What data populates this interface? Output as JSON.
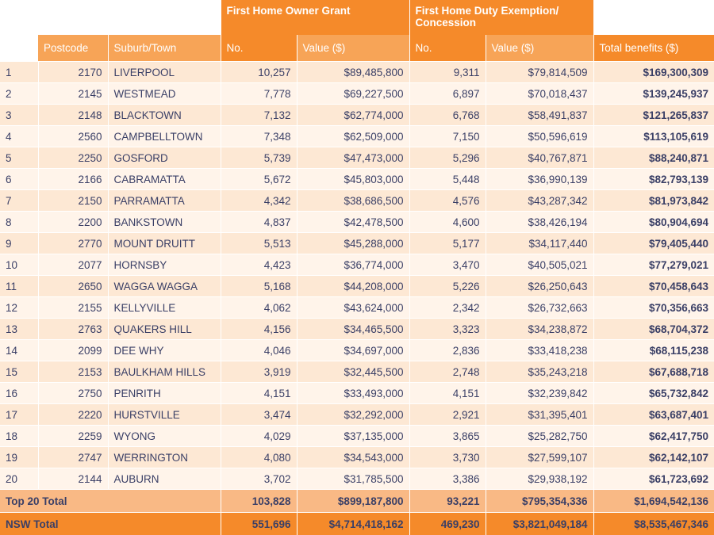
{
  "headers": {
    "group_grant": "First Home Owner Grant",
    "group_duty": "First Home Duty Exemption/ Concession",
    "postcode": "Postcode",
    "suburb": "Suburb/Town",
    "grant_no": "No.",
    "grant_value": "Value ($)",
    "duty_no": "No.",
    "duty_value": "Value ($)",
    "total": "Total benefits ($)"
  },
  "rows": [
    {
      "rank": "1",
      "postcode": "2170",
      "suburb": "LIVERPOOL",
      "grant_no": "10,257",
      "grant_value": "$89,485,800",
      "duty_no": "9,311",
      "duty_value": "$79,814,509",
      "total": "$169,300,309"
    },
    {
      "rank": "2",
      "postcode": "2145",
      "suburb": "WESTMEAD",
      "grant_no": "7,778",
      "grant_value": "$69,227,500",
      "duty_no": "6,897",
      "duty_value": "$70,018,437",
      "total": "$139,245,937"
    },
    {
      "rank": "3",
      "postcode": "2148",
      "suburb": "BLACKTOWN",
      "grant_no": "7,132",
      "grant_value": "$62,774,000",
      "duty_no": "6,768",
      "duty_value": "$58,491,837",
      "total": "$121,265,837"
    },
    {
      "rank": "4",
      "postcode": "2560",
      "suburb": "CAMPBELLTOWN",
      "grant_no": "7,348",
      "grant_value": "$62,509,000",
      "duty_no": "7,150",
      "duty_value": "$50,596,619",
      "total": "$113,105,619"
    },
    {
      "rank": "5",
      "postcode": "2250",
      "suburb": "GOSFORD",
      "grant_no": "5,739",
      "grant_value": "$47,473,000",
      "duty_no": "5,296",
      "duty_value": "$40,767,871",
      "total": "$88,240,871"
    },
    {
      "rank": "6",
      "postcode": "2166",
      "suburb": "CABRAMATTA",
      "grant_no": "5,672",
      "grant_value": "$45,803,000",
      "duty_no": "5,448",
      "duty_value": "$36,990,139",
      "total": "$82,793,139"
    },
    {
      "rank": "7",
      "postcode": "2150",
      "suburb": "PARRAMATTA",
      "grant_no": "4,342",
      "grant_value": "$38,686,500",
      "duty_no": "4,576",
      "duty_value": "$43,287,342",
      "total": "$81,973,842"
    },
    {
      "rank": "8",
      "postcode": "2200",
      "suburb": "BANKSTOWN",
      "grant_no": "4,837",
      "grant_value": "$42,478,500",
      "duty_no": "4,600",
      "duty_value": "$38,426,194",
      "total": "$80,904,694"
    },
    {
      "rank": "9",
      "postcode": "2770",
      "suburb": "MOUNT DRUITT",
      "grant_no": "5,513",
      "grant_value": "$45,288,000",
      "duty_no": "5,177",
      "duty_value": "$34,117,440",
      "total": "$79,405,440"
    },
    {
      "rank": "10",
      "postcode": "2077",
      "suburb": "HORNSBY",
      "grant_no": "4,423",
      "grant_value": "$36,774,000",
      "duty_no": "3,470",
      "duty_value": "$40,505,021",
      "total": "$77,279,021"
    },
    {
      "rank": "11",
      "postcode": "2650",
      "suburb": "WAGGA WAGGA",
      "grant_no": "5,168",
      "grant_value": "$44,208,000",
      "duty_no": "5,226",
      "duty_value": "$26,250,643",
      "total": "$70,458,643"
    },
    {
      "rank": "12",
      "postcode": "2155",
      "suburb": "KELLYVILLE",
      "grant_no": "4,062",
      "grant_value": "$43,624,000",
      "duty_no": "2,342",
      "duty_value": "$26,732,663",
      "total": "$70,356,663"
    },
    {
      "rank": "13",
      "postcode": "2763",
      "suburb": "QUAKERS HILL",
      "grant_no": "4,156",
      "grant_value": "$34,465,500",
      "duty_no": "3,323",
      "duty_value": "$34,238,872",
      "total": "$68,704,372"
    },
    {
      "rank": "14",
      "postcode": "2099",
      "suburb": "DEE WHY",
      "grant_no": "4,046",
      "grant_value": "$34,697,000",
      "duty_no": "2,836",
      "duty_value": "$33,418,238",
      "total": "$68,115,238"
    },
    {
      "rank": "15",
      "postcode": "2153",
      "suburb": "BAULKHAM HILLS",
      "grant_no": "3,919",
      "grant_value": "$32,445,500",
      "duty_no": "2,748",
      "duty_value": "$35,243,218",
      "total": "$67,688,718"
    },
    {
      "rank": "16",
      "postcode": "2750",
      "suburb": "PENRITH",
      "grant_no": "4,151",
      "grant_value": "$33,493,000",
      "duty_no": "4,151",
      "duty_value": "$32,239,842",
      "total": "$65,732,842"
    },
    {
      "rank": "17",
      "postcode": "2220",
      "suburb": "HURSTVILLE",
      "grant_no": "3,474",
      "grant_value": "$32,292,000",
      "duty_no": "2,921",
      "duty_value": "$31,395,401",
      "total": "$63,687,401"
    },
    {
      "rank": "18",
      "postcode": "2259",
      "suburb": "WYONG",
      "grant_no": "4,029",
      "grant_value": "$37,135,000",
      "duty_no": "3,865",
      "duty_value": "$25,282,750",
      "total": "$62,417,750"
    },
    {
      "rank": "19",
      "postcode": "2747",
      "suburb": "WERRINGTON",
      "grant_no": "4,080",
      "grant_value": "$34,543,000",
      "duty_no": "3,730",
      "duty_value": "$27,599,107",
      "total": "$62,142,107"
    },
    {
      "rank": "20",
      "postcode": "2144",
      "suburb": "AUBURN",
      "grant_no": "3,702",
      "grant_value": "$31,785,500",
      "duty_no": "3,386",
      "duty_value": "$29,938,192",
      "total": "$61,723,692"
    }
  ],
  "top20_total": {
    "label": "Top 20 Total",
    "grant_no": "103,828",
    "grant_value": "$899,187,800",
    "duty_no": "93,221",
    "duty_value": "$795,354,336",
    "total": "$1,694,542,136"
  },
  "nsw_total": {
    "label": "NSW Total",
    "grant_no": "551,696",
    "grant_value": "$4,714,418,162",
    "duty_no": "469,230",
    "duty_value": "$3,821,049,184",
    "total": "$8,535,467,346"
  },
  "colors": {
    "header_dark": "#f58a2a",
    "header_light": "#f7a457",
    "row_odd": "#fde8d4",
    "row_even": "#fff4ea",
    "text": "#3a3f66"
  }
}
